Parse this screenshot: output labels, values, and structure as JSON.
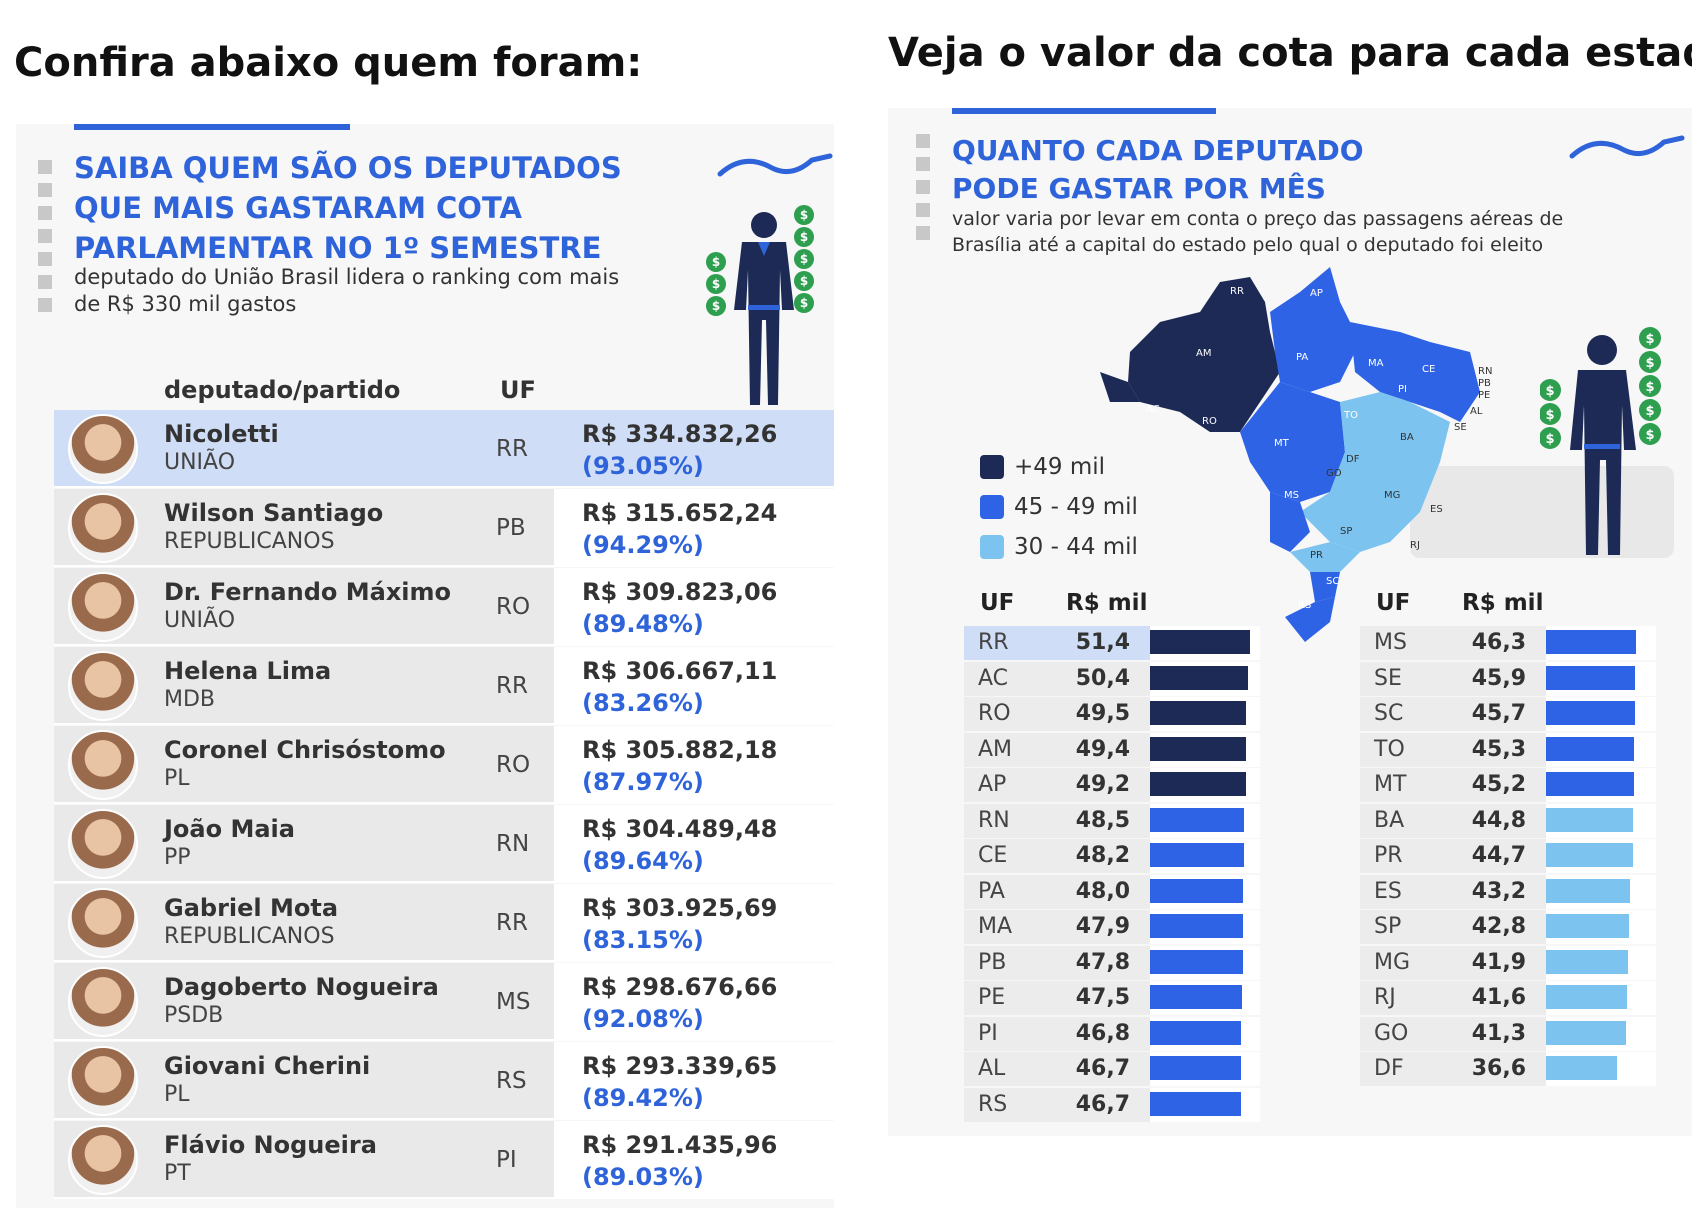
{
  "left": {
    "heading": "Confira abaixo quem foram:",
    "title_lines": [
      "SAIBA QUEM SÃO OS DEPUTADOS",
      "QUE MAIS GASTARAM COTA",
      "PARLAMENTAR NO 1º SEMESTRE"
    ],
    "subtitle_lines": [
      "deputado do União Brasil lidera o ranking com mais",
      "de R$ 330 mil gastos"
    ],
    "col_deputado": "deputado/partido",
    "col_uf": "UF",
    "rows": [
      {
        "name": "Nicoletti",
        "party": "UNIÃO",
        "uf": "RR",
        "value": "R$ 334.832,26",
        "pct": "(93.05%)"
      },
      {
        "name": "Wilson Santiago",
        "party": "REPUBLICANOS",
        "uf": "PB",
        "value": "R$ 315.652,24",
        "pct": "(94.29%)"
      },
      {
        "name": "Dr. Fernando Máximo",
        "party": "UNIÃO",
        "uf": "RO",
        "value": "R$ 309.823,06",
        "pct": "(89.48%)"
      },
      {
        "name": "Helena Lima",
        "party": "MDB",
        "uf": "RR",
        "value": "R$ 306.667,11",
        "pct": "(83.26%)"
      },
      {
        "name": "Coronel Chrisóstomo",
        "party": "PL",
        "uf": "RO",
        "value": "R$ 305.882,18",
        "pct": "(87.97%)"
      },
      {
        "name": "João Maia",
        "party": "PP",
        "uf": "RN",
        "value": "R$ 304.489,48",
        "pct": "(89.64%)"
      },
      {
        "name": "Gabriel Mota",
        "party": "REPUBLICANOS",
        "uf": "RR",
        "value": "R$ 303.925,69",
        "pct": "(83.15%)"
      },
      {
        "name": "Dagoberto Nogueira",
        "party": "PSDB",
        "uf": "MS",
        "value": "R$ 298.676,66",
        "pct": "(92.08%)"
      },
      {
        "name": "Giovani Cherini",
        "party": "PL",
        "uf": "RS",
        "value": "R$ 293.339,65",
        "pct": "(89.42%)"
      },
      {
        "name": "Flávio Nogueira",
        "party": "PT",
        "uf": "PI",
        "value": "R$ 291.435,96",
        "pct": "(89.03%)"
      }
    ]
  },
  "right": {
    "heading": "Veja o valor da cota para cada estado:",
    "title_lines": [
      "QUANTO CADA DEPUTADO",
      "PODE GASTAR POR MÊS"
    ],
    "subtitle_lines": [
      "valor varia por levar em conta o preço das passagens aéreas de",
      "Brasília até a capital do estado pelo qual o deputado foi eleito"
    ],
    "legend": [
      {
        "label": "+49 mil",
        "color": "#1c2a55"
      },
      {
        "label": "45 - 49 mil",
        "color": "#2f63e6"
      },
      {
        "label": "30 - 44 mil",
        "color": "#7cc3ef"
      }
    ],
    "col_uf": "UF",
    "col_value": "R$ mil",
    "map_labels": [
      "RR",
      "AP",
      "AM",
      "PA",
      "MA",
      "CE",
      "RN",
      "PB",
      "PE",
      "AL",
      "SE",
      "PI",
      "AC",
      "RO",
      "TO",
      "BA",
      "MT",
      "DF",
      "GO",
      "MG",
      "ES",
      "MS",
      "SP",
      "RJ",
      "PR",
      "SC",
      "RS"
    ],
    "chart_data": {
      "type": "bar",
      "categories": [
        "RR",
        "AC",
        "RO",
        "AM",
        "AP",
        "RN",
        "CE",
        "PA",
        "MA",
        "PB",
        "PE",
        "PI",
        "AL",
        "RS",
        "MS",
        "SE",
        "SC",
        "TO",
        "MT",
        "BA",
        "PR",
        "ES",
        "SP",
        "MG",
        "RJ",
        "GO",
        "DF"
      ],
      "values": [
        51.4,
        50.4,
        49.5,
        49.4,
        49.2,
        48.5,
        48.2,
        48.0,
        47.9,
        47.8,
        47.5,
        46.8,
        46.7,
        46.7,
        46.3,
        45.9,
        45.7,
        45.3,
        45.2,
        44.8,
        44.7,
        43.2,
        42.8,
        41.9,
        41.6,
        41.3,
        36.6
      ],
      "labels": [
        "51,4",
        "50,4",
        "49,5",
        "49,4",
        "49,2",
        "48,5",
        "48,2",
        "48,0",
        "47,9",
        "47,8",
        "47,5",
        "46,8",
        "46,7",
        "46,7",
        "46,3",
        "45,9",
        "45,7",
        "45,3",
        "45,2",
        "44,8",
        "44,7",
        "43,2",
        "42,8",
        "41,9",
        "41,6",
        "41,3",
        "36,6"
      ],
      "ylabel": "R$ mil",
      "xlabel": "UF"
    }
  }
}
